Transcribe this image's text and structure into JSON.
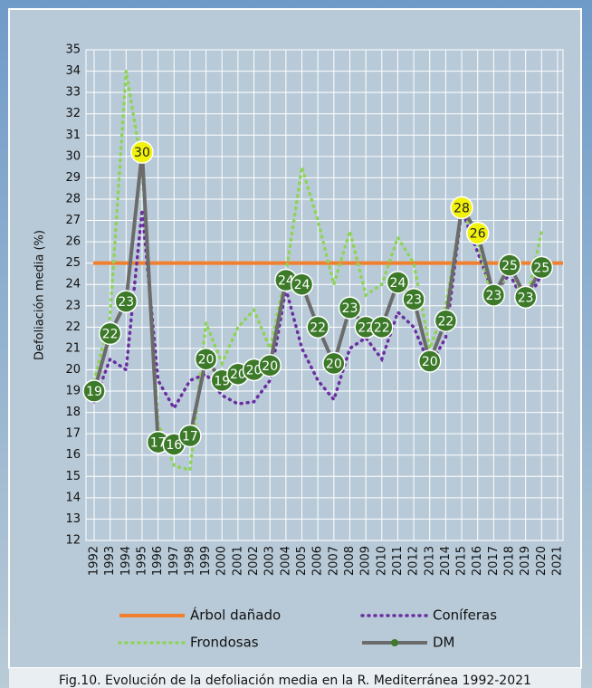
{
  "chart_data": {
    "type": "line",
    "caption": "Fig.10. Evolución de la defoliación media en la R. Mediterránea 1992-2021",
    "y_label": "Defoliación media (%)",
    "categories": [
      "1992",
      "1993",
      "1994",
      "1995",
      "1996",
      "1997",
      "1998",
      "1999",
      "2000",
      "2001",
      "2002",
      "2003",
      "2004",
      "2005",
      "2006",
      "2007",
      "2008",
      "2009",
      "2010",
      "2011",
      "2012",
      "2013",
      "2014",
      "2015",
      "2016",
      "2017",
      "2018",
      "2019",
      "2020",
      "2021"
    ],
    "ylim": [
      12,
      35
    ],
    "yticks": [
      12,
      13,
      14,
      15,
      16,
      17,
      18,
      19,
      20,
      21,
      22,
      23,
      24,
      25,
      26,
      27,
      28,
      29,
      30,
      31,
      32,
      33,
      34,
      35
    ],
    "grid": true,
    "reference": {
      "name": "Árbol dañado",
      "color": "#f07f2e",
      "value": 25
    },
    "series": [
      {
        "name": "Coníferas",
        "color": "#6a2ea0",
        "style": "dotted",
        "values": [
          18.5,
          20.5,
          20,
          27.5,
          19.5,
          18.2,
          19.5,
          19.8,
          18.8,
          18.4,
          18.5,
          19.5,
          23.8,
          21,
          19.5,
          18.6,
          21,
          21.5,
          20.5,
          22.7,
          22,
          20.2,
          21.5,
          27.5,
          25.5,
          23.5,
          24.5,
          23,
          24.5,
          null
        ]
      },
      {
        "name": "Frondosas",
        "color": "#8fd35a",
        "style": "dotted",
        "values": [
          19.5,
          22.5,
          34,
          29.5,
          17.5,
          15.5,
          15.3,
          22.2,
          20.3,
          22,
          22.8,
          21,
          24.5,
          29.5,
          27,
          24,
          26.5,
          23.5,
          24,
          26.2,
          25,
          21,
          23,
          27.5,
          26,
          23,
          25,
          23,
          26.5,
          null
        ]
      },
      {
        "name": "DM",
        "color": "#6b6b6b",
        "marker_color": "#3c7a2a",
        "highlight_color": "#f2f20a",
        "style": "solid",
        "values": [
          19,
          21.7,
          23.2,
          30.2,
          16.6,
          16.5,
          16.9,
          20.5,
          19.5,
          19.8,
          20,
          20.2,
          24.2,
          24,
          22,
          20.3,
          22.9,
          22,
          22,
          24.1,
          23.3,
          20.4,
          22.3,
          27.6,
          26.4,
          23.5,
          24.9,
          23.4,
          24.8,
          null
        ],
        "value_labels": [
          "19",
          "22",
          "23",
          "30",
          "17",
          "16",
          "17",
          "20",
          "19",
          "20",
          "20",
          "20",
          "24",
          "24",
          "22",
          "20",
          "23",
          "22",
          "22",
          "24",
          "23",
          "20",
          "22",
          "28",
          "26",
          "23",
          "25",
          "23",
          "25",
          null
        ]
      }
    ]
  }
}
